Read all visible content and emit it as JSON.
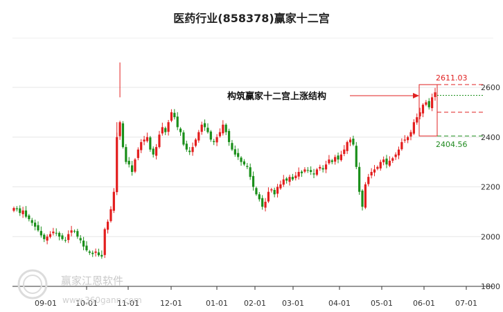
{
  "chart_data": {
    "type": "candlestick",
    "title": "医药行业(858378)赢家十二宫",
    "x_ticks": [
      "09-01",
      "10-01",
      "11-01",
      "12-01",
      "01-01",
      "02-01",
      "03-01",
      "04-01",
      "05-01",
      "06-01",
      "07-01"
    ],
    "y_ticks": [
      1800,
      2000,
      2200,
      2400,
      2600
    ],
    "ylim": [
      1800,
      2700
    ],
    "grid": "horizontal",
    "annotation": "构筑赢家十二宫上涨结构",
    "box_high_label": "2611.03",
    "box_low_label": "2404.56",
    "box_high": 2611.03,
    "box_low": 2404.56,
    "reference_levels": [
      2568,
      2500
    ],
    "candles_approx_close": [
      2115,
      2110,
      2095,
      2105,
      2080,
      2070,
      2055,
      2040,
      2025,
      2005,
      1990,
      2000,
      2010,
      2020,
      2015,
      2000,
      1990,
      1985,
      2010,
      2025,
      2020,
      2000,
      1985,
      1960,
      1945,
      1935,
      1930,
      1940,
      1925,
      1920,
      2030,
      2060,
      2110,
      2180,
      2400,
      2460,
      2360,
      2300,
      2290,
      2260,
      2310,
      2350,
      2380,
      2390,
      2400,
      2350,
      2330,
      2360,
      2410,
      2440,
      2420,
      2460,
      2500,
      2480,
      2440,
      2420,
      2370,
      2350,
      2340,
      2360,
      2390,
      2420,
      2450,
      2440,
      2420,
      2390,
      2380,
      2400,
      2420,
      2450,
      2420,
      2380,
      2350,
      2330,
      2320,
      2300,
      2290,
      2280,
      2240,
      2200,
      2170,
      2150,
      2120,
      2140,
      2180,
      2190,
      2170,
      2200,
      2210,
      2230,
      2225,
      2240,
      2230,
      2245,
      2260,
      2255,
      2270,
      2265,
      2260,
      2250,
      2270,
      2280,
      2270,
      2290,
      2310,
      2300,
      2320,
      2310,
      2330,
      2350,
      2380,
      2390,
      2370,
      2280,
      2180,
      2120,
      2210,
      2240,
      2260,
      2270,
      2280,
      2300,
      2310,
      2290,
      2305,
      2315,
      2330,
      2350,
      2380,
      2390,
      2400,
      2420,
      2460,
      2480,
      2500,
      2530,
      2540,
      2520,
      2560,
      2580
    ]
  },
  "watermark": {
    "brand": "赢家江恩软件",
    "url": "www.360gann.com"
  }
}
